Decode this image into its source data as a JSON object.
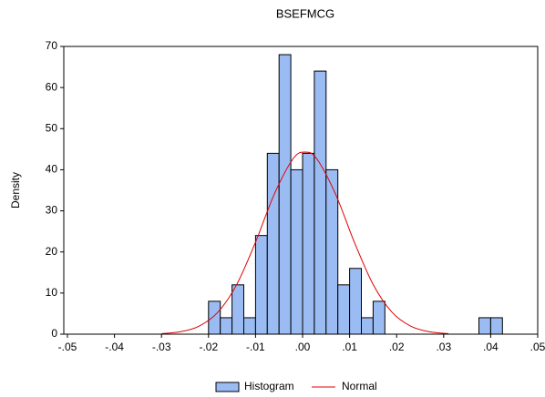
{
  "chart_data": {
    "type": "histogram",
    "title": "BSEFMCG",
    "ylabel": "Density",
    "bins": [
      -0.02,
      -0.0175,
      -0.015,
      -0.0125,
      -0.01,
      -0.0075,
      -0.005,
      -0.0025,
      0,
      0.0025,
      0.005,
      0.0075,
      0.01,
      0.0125,
      0.015,
      0.0175,
      0.02,
      0.0225,
      0.025,
      0.0275,
      0.03,
      0.0325,
      0.035,
      0.0375,
      0.04,
      0.0425
    ],
    "series": [
      {
        "name": "Histogram",
        "color": "#9bbcf2",
        "values": [
          8,
          4,
          12,
          4,
          24,
          44,
          68,
          40,
          44,
          64,
          40,
          12,
          16,
          4,
          8,
          0,
          0,
          0,
          0,
          0,
          0,
          0,
          0,
          4,
          4
        ]
      },
      {
        "name": "Normal",
        "color": "#e00000",
        "x": [
          -0.03,
          -0.026,
          -0.022,
          -0.018,
          -0.014,
          -0.01,
          -0.006,
          -0.002,
          0.0005,
          0.003,
          0.007,
          0.011,
          0.015,
          0.019,
          0.023,
          0.027,
          0.031
        ],
        "values": [
          0.14,
          0.58,
          1.95,
          5.36,
          12.1,
          22.4,
          34.1,
          42.7,
          44.3,
          42.7,
          34.1,
          22.4,
          12.1,
          5.36,
          1.95,
          0.58,
          0.14
        ]
      }
    ],
    "xlim": [
      -0.05,
      0.05
    ],
    "ylim": [
      0,
      70
    ],
    "xticks": [
      {
        "value": -0.05,
        "label": "-.05"
      },
      {
        "value": -0.04,
        "label": "-.04"
      },
      {
        "value": -0.03,
        "label": "-.03"
      },
      {
        "value": -0.02,
        "label": "-.02"
      },
      {
        "value": -0.01,
        "label": "-.01"
      },
      {
        "value": 0,
        "label": ".00"
      },
      {
        "value": 0.01,
        "label": ".01"
      },
      {
        "value": 0.02,
        "label": ".02"
      },
      {
        "value": 0.03,
        "label": ".03"
      },
      {
        "value": 0.04,
        "label": ".04"
      },
      {
        "value": 0.05,
        "label": ".05"
      }
    ],
    "yticks": [
      0,
      10,
      20,
      30,
      40,
      50,
      60,
      70
    ],
    "grid": false,
    "legend": "bottom"
  }
}
